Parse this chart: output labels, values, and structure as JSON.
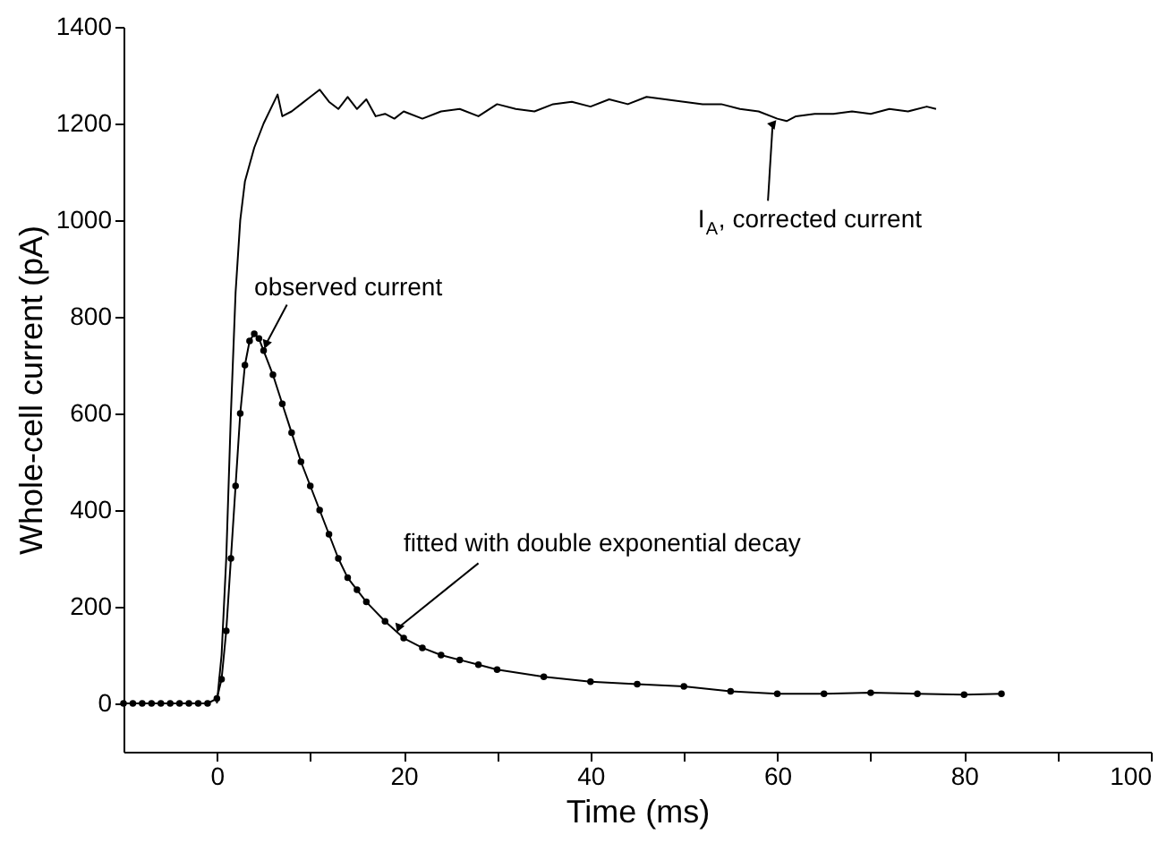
{
  "chart_data": {
    "type": "line",
    "xlabel": "Time (ms)",
    "ylabel": "Whole-cell current (pA)",
    "xlim": [
      -10,
      100
    ],
    "ylim": [
      -100,
      1400
    ],
    "xticks": [
      0,
      {
        "value": 10,
        "label": null
      },
      20,
      {
        "value": 30,
        "label": null
      },
      40,
      {
        "value": 50,
        "label": null
      },
      60,
      {
        "value": 70,
        "label": null
      },
      80,
      {
        "value": 90,
        "label": null
      },
      100
    ],
    "yticks": [
      0,
      200,
      400,
      600,
      800,
      1000,
      1200,
      1400
    ],
    "grid": false,
    "series": [
      {
        "color": "#000000",
        "marker": "none",
        "line_style": "solid",
        "x": [
          0,
          0.5,
          1,
          1.5,
          2,
          2.5,
          3,
          4,
          5,
          6,
          6.5,
          7,
          8,
          9,
          10,
          11,
          12,
          13,
          14,
          15,
          16,
          17,
          18,
          19,
          20,
          22,
          24,
          26,
          28,
          30,
          32,
          34,
          36,
          38,
          40,
          42,
          44,
          46,
          48,
          50,
          52,
          54,
          56,
          58,
          60,
          61,
          62,
          64,
          66,
          68,
          70,
          72,
          74,
          76,
          77
        ],
        "values": [
          0,
          100,
          300,
          600,
          850,
          1000,
          1080,
          1150,
          1200,
          1240,
          1260,
          1215,
          1225,
          1240,
          1255,
          1270,
          1245,
          1230,
          1255,
          1230,
          1250,
          1215,
          1220,
          1210,
          1225,
          1210,
          1225,
          1230,
          1215,
          1240,
          1230,
          1225,
          1240,
          1245,
          1235,
          1250,
          1240,
          1255,
          1250,
          1245,
          1240,
          1240,
          1230,
          1225,
          1210,
          1205,
          1215,
          1220,
          1220,
          1225,
          1220,
          1230,
          1225,
          1235,
          1230
        ]
      },
      {
        "color": "#000000",
        "marker": "circle",
        "line_style": "solid",
        "x": [
          -10,
          -9,
          -8,
          -7,
          -6,
          -5,
          -4,
          -3,
          -2,
          -1,
          0,
          0.5,
          1,
          1.5,
          2,
          2.5,
          3,
          3.5,
          4,
          4.5,
          5,
          6,
          7,
          8,
          9,
          10,
          11,
          12,
          13,
          14,
          15,
          16,
          18,
          20,
          22,
          24,
          26,
          28,
          30,
          35,
          40,
          45,
          50,
          55,
          60,
          65,
          70,
          75,
          80,
          84
        ],
        "values": [
          0,
          0,
          0,
          0,
          0,
          0,
          0,
          0,
          0,
          0,
          10,
          50,
          150,
          300,
          450,
          600,
          700,
          750,
          765,
          755,
          730,
          680,
          620,
          560,
          500,
          450,
          400,
          350,
          300,
          260,
          235,
          210,
          170,
          135,
          115,
          100,
          90,
          80,
          70,
          55,
          45,
          40,
          35,
          25,
          20,
          20,
          22,
          20,
          18,
          20
        ]
      }
    ],
    "annotations": [
      {
        "text": "observed current",
        "x": 5,
        "y": 730
      },
      {
        "text": "I$_{A}$, corrected current",
        "x": 60,
        "y": 1210
      },
      {
        "text": "fitted with double exponential decay",
        "x": 19,
        "y": 150
      }
    ]
  }
}
